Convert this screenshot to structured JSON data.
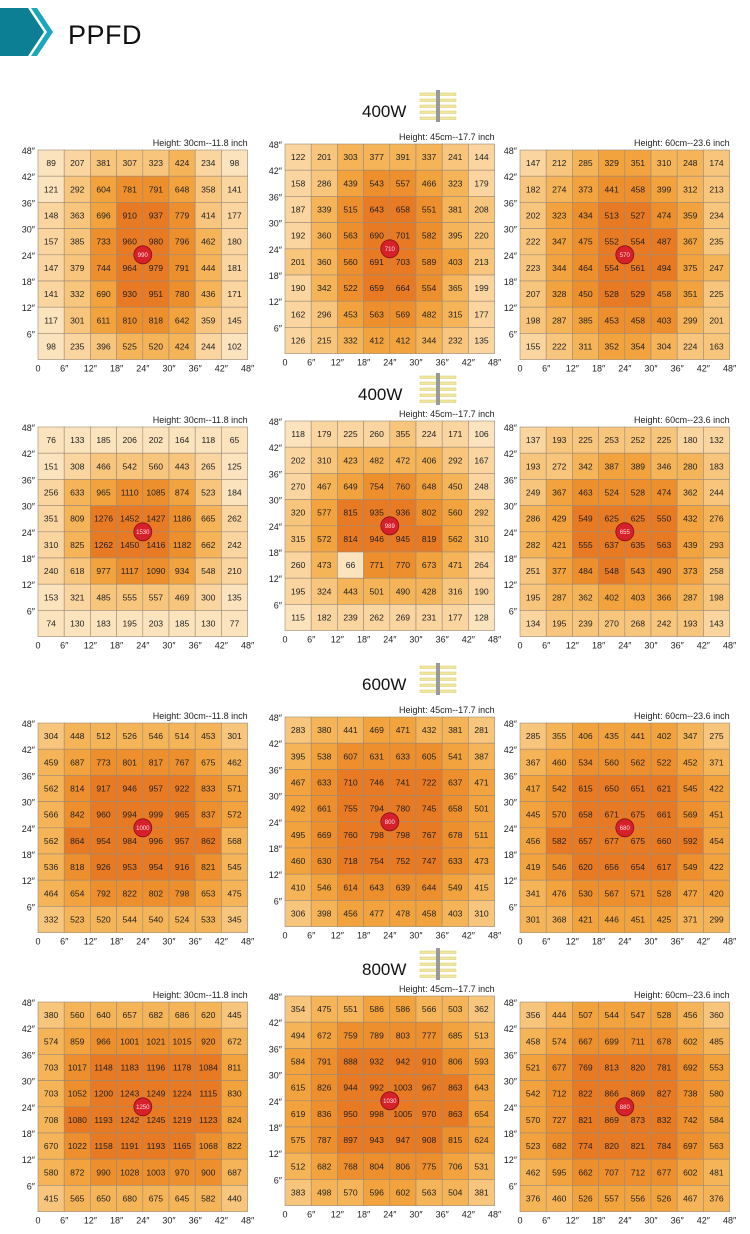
{
  "page": {
    "title": "PPFD"
  },
  "colors": {
    "banner_dark": "#0d7f94",
    "banner_light": "#1aa6bd",
    "cell_levels": [
      "#fbe3bd",
      "#fad5a0",
      "#f8c57d",
      "#f5b458",
      "#f2a33d",
      "#ee8f2d",
      "#e97a24"
    ],
    "center_dot": "#d6212b",
    "grid_line": "#9a8a78"
  },
  "icons": {
    "banner": "chevron-arrows-icon",
    "lamp": "led-bar-lamp-icon",
    "center": "light-center-dot-icon"
  },
  "axis_ticks": [
    "0",
    "6″",
    "12″",
    "18″",
    "24″",
    "30″",
    "36″",
    "42″",
    "48″"
  ],
  "chart_data": [
    {
      "type": "heatmap",
      "wattage": "400W",
      "charts": [
        {
          "title": "Height: 30cm--11.8 inch",
          "center_value": "990",
          "rows": [
            [
              89,
              207,
              381,
              307,
              323,
              424,
              234,
              98
            ],
            [
              121,
              292,
              604,
              781,
              791,
              648,
              358,
              141
            ],
            [
              148,
              363,
              696,
              910,
              937,
              779,
              414,
              177
            ],
            [
              157,
              385,
              733,
              960,
              980,
              796,
              462,
              180
            ],
            [
              147,
              379,
              744,
              964,
              979,
              791,
              444,
              181
            ],
            [
              141,
              332,
              690,
              930,
              951,
              780,
              436,
              171
            ],
            [
              117,
              301,
              611,
              810,
              818,
              642,
              359,
              145
            ],
            [
              98,
              235,
              396,
              525,
              520,
              424,
              244,
              102
            ]
          ]
        },
        {
          "title": "Height: 45cm--17.7 inch",
          "center_value": "710",
          "rows": [
            [
              122,
              201,
              303,
              377,
              391,
              337,
              241,
              144
            ],
            [
              158,
              286,
              439,
              543,
              557,
              466,
              323,
              179
            ],
            [
              187,
              339,
              515,
              643,
              658,
              551,
              381,
              208
            ],
            [
              192,
              360,
              563,
              690,
              701,
              582,
              395,
              220
            ],
            [
              201,
              360,
              560,
              691,
              703,
              589,
              403,
              213
            ],
            [
              190,
              342,
              522,
              659,
              664,
              554,
              365,
              199
            ],
            [
              162,
              296,
              453,
              563,
              569,
              482,
              315,
              177
            ],
            [
              126,
              215,
              332,
              412,
              412,
              344,
              232,
              135
            ]
          ]
        },
        {
          "title": "Height: 60cm--23.6 inch",
          "center_value": "570",
          "rows": [
            [
              147,
              212,
              285,
              329,
              351,
              310,
              248,
              174
            ],
            [
              182,
              274,
              373,
              441,
              458,
              399,
              312,
              213
            ],
            [
              202,
              323,
              434,
              513,
              527,
              474,
              359,
              234
            ],
            [
              222,
              347,
              475,
              552,
              554,
              487,
              367,
              235
            ],
            [
              223,
              344,
              464,
              554,
              561,
              494,
              375,
              247
            ],
            [
              207,
              328,
              450,
              528,
              529,
              458,
              351,
              225
            ],
            [
              198,
              287,
              385,
              453,
              458,
              403,
              299,
              201
            ],
            [
              155,
              222,
              311,
              352,
              354,
              304,
              224,
              163
            ]
          ]
        }
      ]
    },
    {
      "type": "heatmap",
      "wattage": "400W",
      "charts": [
        {
          "title": "Height: 30cm--11.8 inch",
          "center_value": "1530",
          "rows": [
            [
              76,
              133,
              185,
              206,
              202,
              164,
              118,
              65
            ],
            [
              151,
              308,
              466,
              542,
              560,
              443,
              265,
              125
            ],
            [
              256,
              633,
              965,
              1110,
              1085,
              874,
              523,
              184
            ],
            [
              351,
              809,
              1276,
              1452,
              1427,
              1186,
              665,
              262
            ],
            [
              310,
              825,
              1262,
              1450,
              1416,
              1182,
              662,
              242
            ],
            [
              240,
              618,
              977,
              1117,
              1090,
              934,
              548,
              210
            ],
            [
              153,
              321,
              485,
              555,
              557,
              469,
              300,
              135
            ],
            [
              74,
              130,
              183,
              195,
              203,
              185,
              130,
              77
            ]
          ]
        },
        {
          "title": "Height: 45cm--17.7 inch",
          "center_value": "989",
          "rows": [
            [
              118,
              179,
              225,
              260,
              355,
              224,
              171,
              106
            ],
            [
              202,
              310,
              423,
              482,
              472,
              406,
              292,
              167
            ],
            [
              270,
              467,
              649,
              754,
              760,
              648,
              450,
              248
            ],
            [
              320,
              577,
              815,
              935,
              936,
              802,
              560,
              292
            ],
            [
              315,
              572,
              814,
              946,
              945,
              819,
              562,
              310
            ],
            [
              260,
              473,
              66,
              771,
              770,
              673,
              471,
              264
            ],
            [
              195,
              324,
              443,
              501,
              490,
              428,
              316,
              190
            ],
            [
              115,
              182,
              239,
              262,
              269,
              231,
              177,
              128
            ]
          ]
        },
        {
          "title": "Height: 60cm--23.6 inch",
          "center_value": "655",
          "rows": [
            [
              137,
              193,
              225,
              253,
              252,
              225,
              180,
              132
            ],
            [
              193,
              272,
              342,
              387,
              389,
              346,
              280,
              183
            ],
            [
              249,
              367,
              463,
              524,
              528,
              474,
              362,
              244
            ],
            [
              286,
              429,
              549,
              625,
              625,
              550,
              432,
              276
            ],
            [
              282,
              421,
              555,
              637,
              635,
              563,
              439,
              293
            ],
            [
              251,
              377,
              484,
              548,
              543,
              490,
              373,
              258
            ],
            [
              195,
              287,
              362,
              402,
              403,
              366,
              287,
              198
            ],
            [
              134,
              195,
              239,
              270,
              268,
              242,
              193,
              143
            ]
          ]
        }
      ]
    },
    {
      "type": "heatmap",
      "wattage": "600W",
      "charts": [
        {
          "title": "Height: 30cm--11.8 inch",
          "center_value": "1000",
          "rows": [
            [
              304,
              448,
              512,
              526,
              546,
              514,
              453,
              301
            ],
            [
              459,
              687,
              773,
              801,
              817,
              767,
              675,
              462
            ],
            [
              562,
              814,
              917,
              946,
              957,
              922,
              833,
              571
            ],
            [
              566,
              842,
              960,
              994,
              999,
              965,
              837,
              572
            ],
            [
              562,
              864,
              954,
              984,
              996,
              957,
              862,
              568
            ],
            [
              536,
              818,
              926,
              953,
              954,
              916,
              821,
              545
            ],
            [
              464,
              654,
              792,
              822,
              802,
              798,
              653,
              475
            ],
            [
              332,
              523,
              520,
              544,
              540,
              524,
              533,
              345
            ]
          ]
        },
        {
          "title": "Height: 45cm--17.7 inch",
          "center_value": "800",
          "rows": [
            [
              283,
              380,
              441,
              469,
              471,
              432,
              381,
              281
            ],
            [
              395,
              538,
              607,
              631,
              633,
              605,
              541,
              387
            ],
            [
              467,
              633,
              710,
              746,
              741,
              722,
              637,
              471
            ],
            [
              492,
              661,
              755,
              794,
              780,
              745,
              658,
              501
            ],
            [
              495,
              669,
              760,
              798,
              798,
              767,
              678,
              511
            ],
            [
              460,
              630,
              718,
              754,
              752,
              747,
              633,
              473
            ],
            [
              410,
              546,
              614,
              643,
              639,
              644,
              549,
              415
            ],
            [
              306,
              398,
              456,
              477,
              478,
              458,
              403,
              310
            ]
          ]
        },
        {
          "title": "Height: 60cm--23.6 inch",
          "center_value": "680",
          "rows": [
            [
              285,
              355,
              406,
              435,
              441,
              402,
              347,
              275
            ],
            [
              367,
              460,
              534,
              560,
              562,
              522,
              452,
              371
            ],
            [
              417,
              542,
              615,
              650,
              651,
              621,
              545,
              422
            ],
            [
              445,
              570,
              658,
              671,
              675,
              661,
              569,
              451
            ],
            [
              456,
              582,
              657,
              677,
              675,
              660,
              592,
              454
            ],
            [
              419,
              546,
              620,
              656,
              654,
              617,
              549,
              422
            ],
            [
              341,
              476,
              530,
              567,
              571,
              528,
              477,
              420
            ],
            [
              301,
              368,
              421,
              446,
              451,
              425,
              371,
              299
            ]
          ]
        }
      ]
    },
    {
      "type": "heatmap",
      "wattage": "800W",
      "charts": [
        {
          "title": "Height: 30cm--11.8 inch",
          "center_value": "1250",
          "rows": [
            [
              380,
              560,
              640,
              657,
              682,
              686,
              620,
              445
            ],
            [
              574,
              859,
              966,
              1001,
              1021,
              1015,
              920,
              672
            ],
            [
              703,
              1017,
              1148,
              1183,
              1196,
              1178,
              1084,
              811
            ],
            [
              703,
              1052,
              1200,
              1243,
              1249,
              1224,
              1115,
              830
            ],
            [
              708,
              1080,
              1193,
              1242,
              1245,
              1219,
              1123,
              824
            ],
            [
              670,
              1022,
              1158,
              1191,
              1193,
              1165,
              1068,
              822
            ],
            [
              580,
              872,
              990,
              1028,
              1003,
              970,
              900,
              687
            ],
            [
              415,
              565,
              650,
              680,
              675,
              645,
              582,
              440
            ]
          ]
        },
        {
          "title": "Height: 45cm--17.7 inch",
          "center_value": "1030",
          "rows": [
            [
              354,
              475,
              551,
              586,
              586,
              566,
              503,
              362
            ],
            [
              494,
              672,
              759,
              789,
              803,
              777,
              685,
              513
            ],
            [
              584,
              791,
              888,
              932,
              942,
              910,
              806,
              593
            ],
            [
              615,
              826,
              944,
              992,
              1003,
              967,
              863,
              643
            ],
            [
              619,
              836,
              950,
              998,
              1005,
              970,
              863,
              654
            ],
            [
              575,
              787,
              897,
              943,
              947,
              908,
              815,
              624
            ],
            [
              512,
              682,
              768,
              804,
              806,
              775,
              706,
              531
            ],
            [
              383,
              498,
              570,
              596,
              602,
              563,
              504,
              381
            ]
          ]
        },
        {
          "title": "Height: 60cm--23.6 inch",
          "center_value": "880",
          "rows": [
            [
              356,
              444,
              507,
              544,
              547,
              528,
              456,
              360
            ],
            [
              458,
              574,
              667,
              699,
              711,
              678,
              602,
              485
            ],
            [
              521,
              677,
              769,
              813,
              820,
              781,
              692,
              553
            ],
            [
              542,
              712,
              822,
              866,
              869,
              827,
              738,
              580
            ],
            [
              570,
              727,
              821,
              869,
              873,
              832,
              742,
              584
            ],
            [
              523,
              682,
              774,
              820,
              821,
              784,
              697,
              563
            ],
            [
              462,
              595,
              662,
              707,
              712,
              677,
              602,
              481
            ],
            [
              376,
              460,
              526,
              557,
              556,
              526,
              467,
              376
            ]
          ]
        }
      ]
    }
  ]
}
